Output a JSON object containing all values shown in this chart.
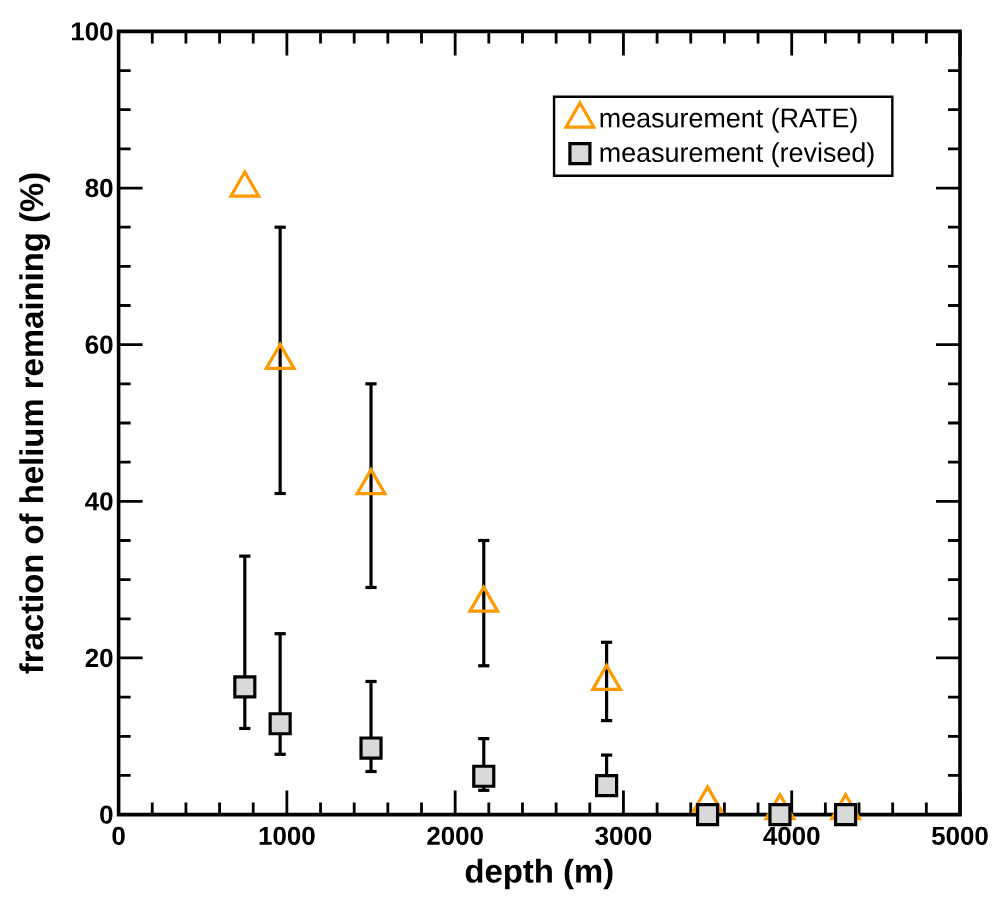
{
  "chart_data": {
    "type": "scatter",
    "xlabel": "depth (m)",
    "ylabel": "fraction of helium remaining (%)",
    "x": [
      750,
      960,
      1500,
      2170,
      2900,
      3500,
      3930,
      4320
    ],
    "series": [
      {
        "name": "measurement (RATE)",
        "color": "#ff9900",
        "marker": "triangle",
        "values": [
          80,
          58,
          42,
          27,
          17,
          1.5,
          0.5,
          0.5
        ],
        "errors": [
          null,
          [
            41,
            75
          ],
          [
            29,
            55
          ],
          [
            19,
            35
          ],
          [
            12,
            22
          ],
          null,
          null,
          null
        ]
      },
      {
        "name": "measurement (revised)",
        "color": "#d9d9d9",
        "marker": "square",
        "values": [
          16.3,
          11.6,
          8.5,
          4.9,
          3.7,
          0,
          0,
          0
        ],
        "errors": [
          [
            11,
            33
          ],
          [
            7.7,
            23.1
          ],
          [
            5.5,
            17
          ],
          [
            3.1,
            9.7
          ],
          [
            2.7,
            7.6
          ],
          null,
          null,
          null
        ]
      }
    ],
    "xlim": [
      0,
      5000
    ],
    "ylim": [
      0,
      100
    ],
    "xticks": [
      0,
      1000,
      2000,
      3000,
      4000,
      5000
    ],
    "yticks": [
      0,
      20,
      40,
      60,
      80,
      100
    ],
    "legend": "top right"
  }
}
